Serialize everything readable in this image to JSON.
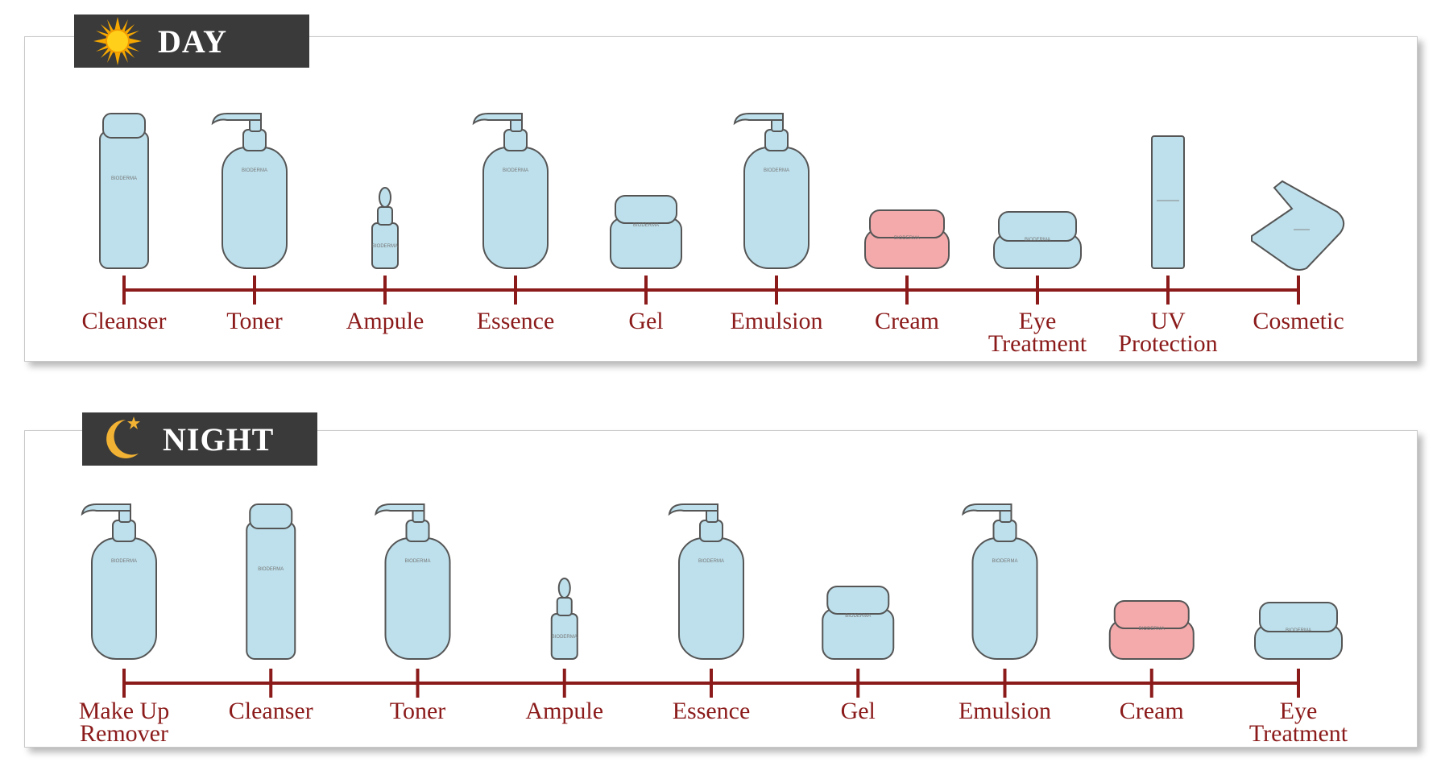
{
  "colors": {
    "timeline": "#8b1a1a",
    "bottle": "#bde0ec",
    "bottle_stroke": "#555555",
    "cream_jar": "#f4a9ab",
    "tab_bg": "#3a3a3a"
  },
  "day": {
    "title": "DAY",
    "icon": "sun-icon",
    "steps": [
      {
        "label": [
          "Cleanser"
        ],
        "product": "tube-bottle"
      },
      {
        "label": [
          "Toner"
        ],
        "product": "pump-bottle"
      },
      {
        "label": [
          "Ampule"
        ],
        "product": "dropper-vial"
      },
      {
        "label": [
          "Essence"
        ],
        "product": "pump-bottle"
      },
      {
        "label": [
          "Gel"
        ],
        "product": "jar"
      },
      {
        "label": [
          "Emulsion"
        ],
        "product": "pump-bottle"
      },
      {
        "label": [
          "Cream"
        ],
        "product": "pink-jar"
      },
      {
        "label": [
          "Eye",
          "Treatment"
        ],
        "product": "flat-jar"
      },
      {
        "label": [
          "UV",
          "Protection"
        ],
        "product": "slim-tube"
      },
      {
        "label": [
          "Cosmetic"
        ],
        "product": "compact"
      }
    ]
  },
  "night": {
    "title": "NIGHT",
    "icon": "moon-icon",
    "steps": [
      {
        "label": [
          "Make Up",
          "Remover"
        ],
        "product": "pump-bottle"
      },
      {
        "label": [
          "Cleanser"
        ],
        "product": "tube-bottle"
      },
      {
        "label": [
          "Toner"
        ],
        "product": "pump-bottle"
      },
      {
        "label": [
          "Ampule"
        ],
        "product": "dropper-vial"
      },
      {
        "label": [
          "Essence"
        ],
        "product": "pump-bottle"
      },
      {
        "label": [
          "Gel"
        ],
        "product": "jar"
      },
      {
        "label": [
          "Emulsion"
        ],
        "product": "pump-bottle"
      },
      {
        "label": [
          "Cream"
        ],
        "product": "pink-jar"
      },
      {
        "label": [
          "Eye",
          "Treatment"
        ],
        "product": "flat-jar"
      }
    ]
  }
}
